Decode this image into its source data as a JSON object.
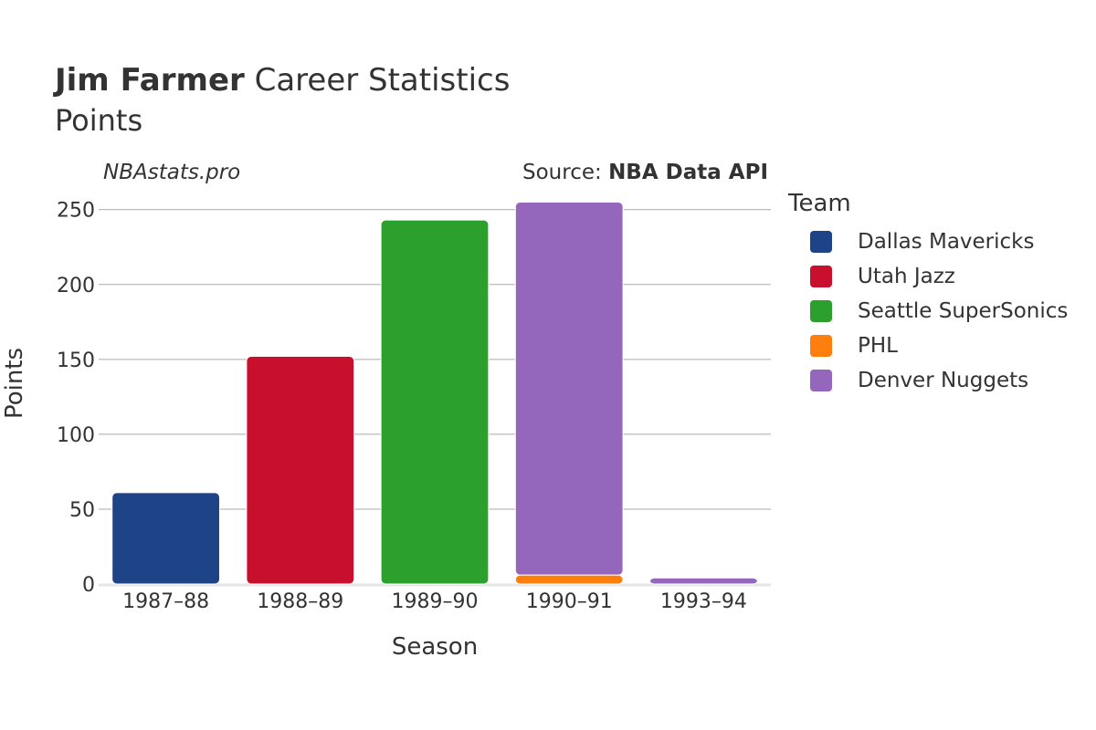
{
  "header": {
    "title_bold": "Jim Farmer",
    "title_rest": " Career Statistics",
    "subtitle": "Points",
    "watermark": "NBAstats.pro",
    "source_prefix": "Source: ",
    "source_name": "NBA Data API"
  },
  "legend": {
    "title": "Team",
    "items": [
      {
        "label": "Dallas Mavericks",
        "color": "#1f4387"
      },
      {
        "label": "Utah Jazz",
        "color": "#c8102e"
      },
      {
        "label": "Seattle SuperSonics",
        "color": "#2ca02c"
      },
      {
        "label": "PHL",
        "color": "#ff7f0e"
      },
      {
        "label": "Denver Nuggets",
        "color": "#9467bd"
      }
    ]
  },
  "chart_data": {
    "type": "bar",
    "stacked": true,
    "categories": [
      "1987–88",
      "1988–89",
      "1989–90",
      "1990–91",
      "1993–94"
    ],
    "series": [
      {
        "name": "Dallas Mavericks",
        "color": "#1f4387",
        "values": [
          61,
          0,
          0,
          0,
          0
        ]
      },
      {
        "name": "Utah Jazz",
        "color": "#c8102e",
        "values": [
          0,
          152,
          0,
          0,
          0
        ]
      },
      {
        "name": "Seattle SuperSonics",
        "color": "#2ca02c",
        "values": [
          0,
          0,
          243,
          0,
          0
        ]
      },
      {
        "name": "PHL",
        "color": "#ff7f0e",
        "values": [
          0,
          0,
          0,
          6,
          0
        ]
      },
      {
        "name": "Denver Nuggets",
        "color": "#9467bd",
        "values": [
          0,
          0,
          0,
          249,
          4
        ]
      }
    ],
    "xlabel": "Season",
    "ylabel": "Points",
    "ylim": [
      0,
      262
    ],
    "yticks": [
      0,
      50,
      100,
      150,
      200,
      250
    ],
    "grid": true,
    "legend_position": "right"
  }
}
